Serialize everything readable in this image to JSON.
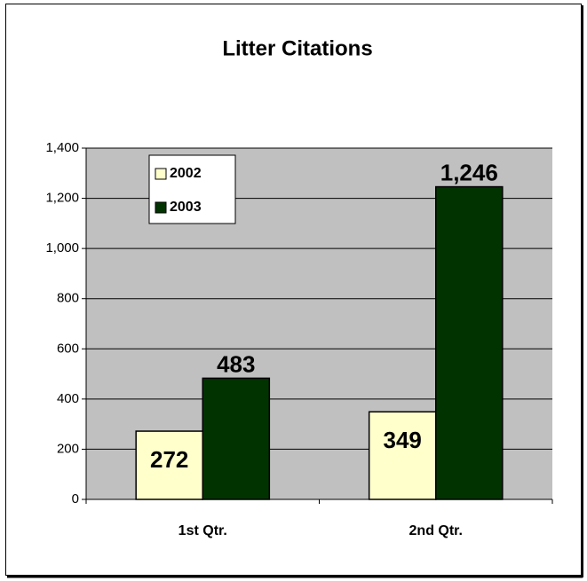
{
  "chart_data": {
    "type": "bar",
    "title": "Litter Citations",
    "categories": [
      "1st Qtr.",
      "2nd Qtr."
    ],
    "series": [
      {
        "name": "2002",
        "color": "#ffffcc",
        "values": [
          272,
          349
        ]
      },
      {
        "name": "2003",
        "color": "#003300",
        "values": [
          483,
          1246
        ],
        "value_labels": [
          "483",
          "1,246"
        ]
      }
    ],
    "ylim": [
      0,
      1400
    ],
    "yticks": [
      0,
      200,
      400,
      600,
      800,
      {
        "value": 1000,
        "label": "1,000"
      },
      {
        "value": 1200,
        "label": "1,200"
      },
      {
        "value": 1400,
        "label": "1,400"
      }
    ],
    "grid": true,
    "legend": "upper left",
    "plot_background": "#c0c0c0"
  }
}
